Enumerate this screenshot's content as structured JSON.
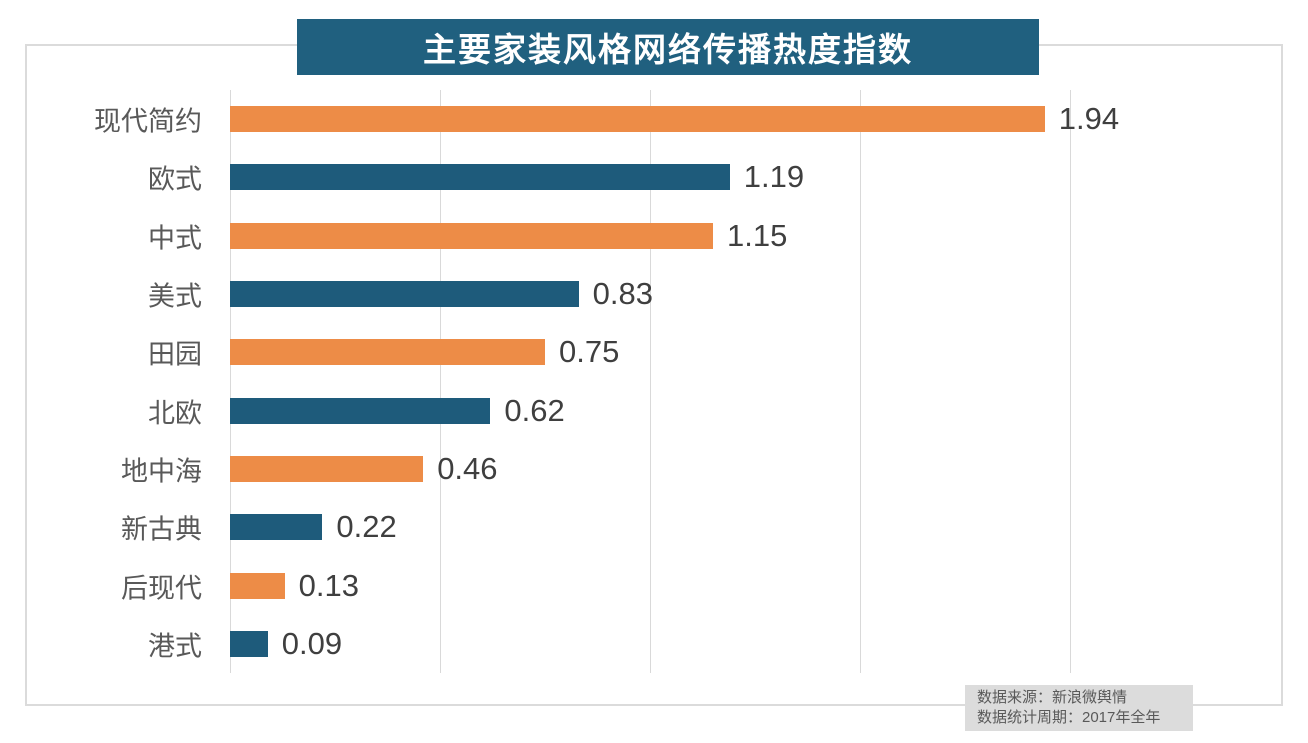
{
  "title": "主要家装风格网络传播热度指数",
  "source_note": {
    "line1": "数据来源：新浪微舆情",
    "line2": "数据统计周期：2017年全年"
  },
  "colors": {
    "orange": "#ED8C47",
    "blue": "#1E5B7B",
    "title_bg": "#20607F",
    "title_text": "#FFFFFF",
    "grid": "#D9D9D9",
    "frame": "#DBDBDB",
    "label_text": "#595959",
    "value_text": "#3F3F3F",
    "note_bg": "#DCDCDC",
    "note_text": "#595959"
  },
  "chart_data": {
    "type": "bar",
    "orientation": "horizontal",
    "title": "主要家装风格网络传播热度指数",
    "categories": [
      "现代简约",
      "欧式",
      "中式",
      "美式",
      "田园",
      "北欧",
      "地中海",
      "新古典",
      "后现代",
      "港式"
    ],
    "values": [
      1.94,
      1.19,
      1.15,
      0.83,
      0.75,
      0.62,
      0.46,
      0.22,
      0.13,
      0.09
    ],
    "value_labels": [
      "1.94",
      "1.19",
      "1.15",
      "0.83",
      "0.75",
      "0.62",
      "0.46",
      "0.22",
      "0.13",
      "0.09"
    ],
    "bar_color_pattern": [
      "#ED8C47",
      "#1E5B7B"
    ],
    "xlim": [
      0,
      2.5
    ],
    "gridline_ticks": [
      0,
      0.5,
      1.0,
      1.5,
      2.0
    ],
    "grid": "vertical-only",
    "legend": "none",
    "xlabel": "",
    "ylabel": ""
  }
}
